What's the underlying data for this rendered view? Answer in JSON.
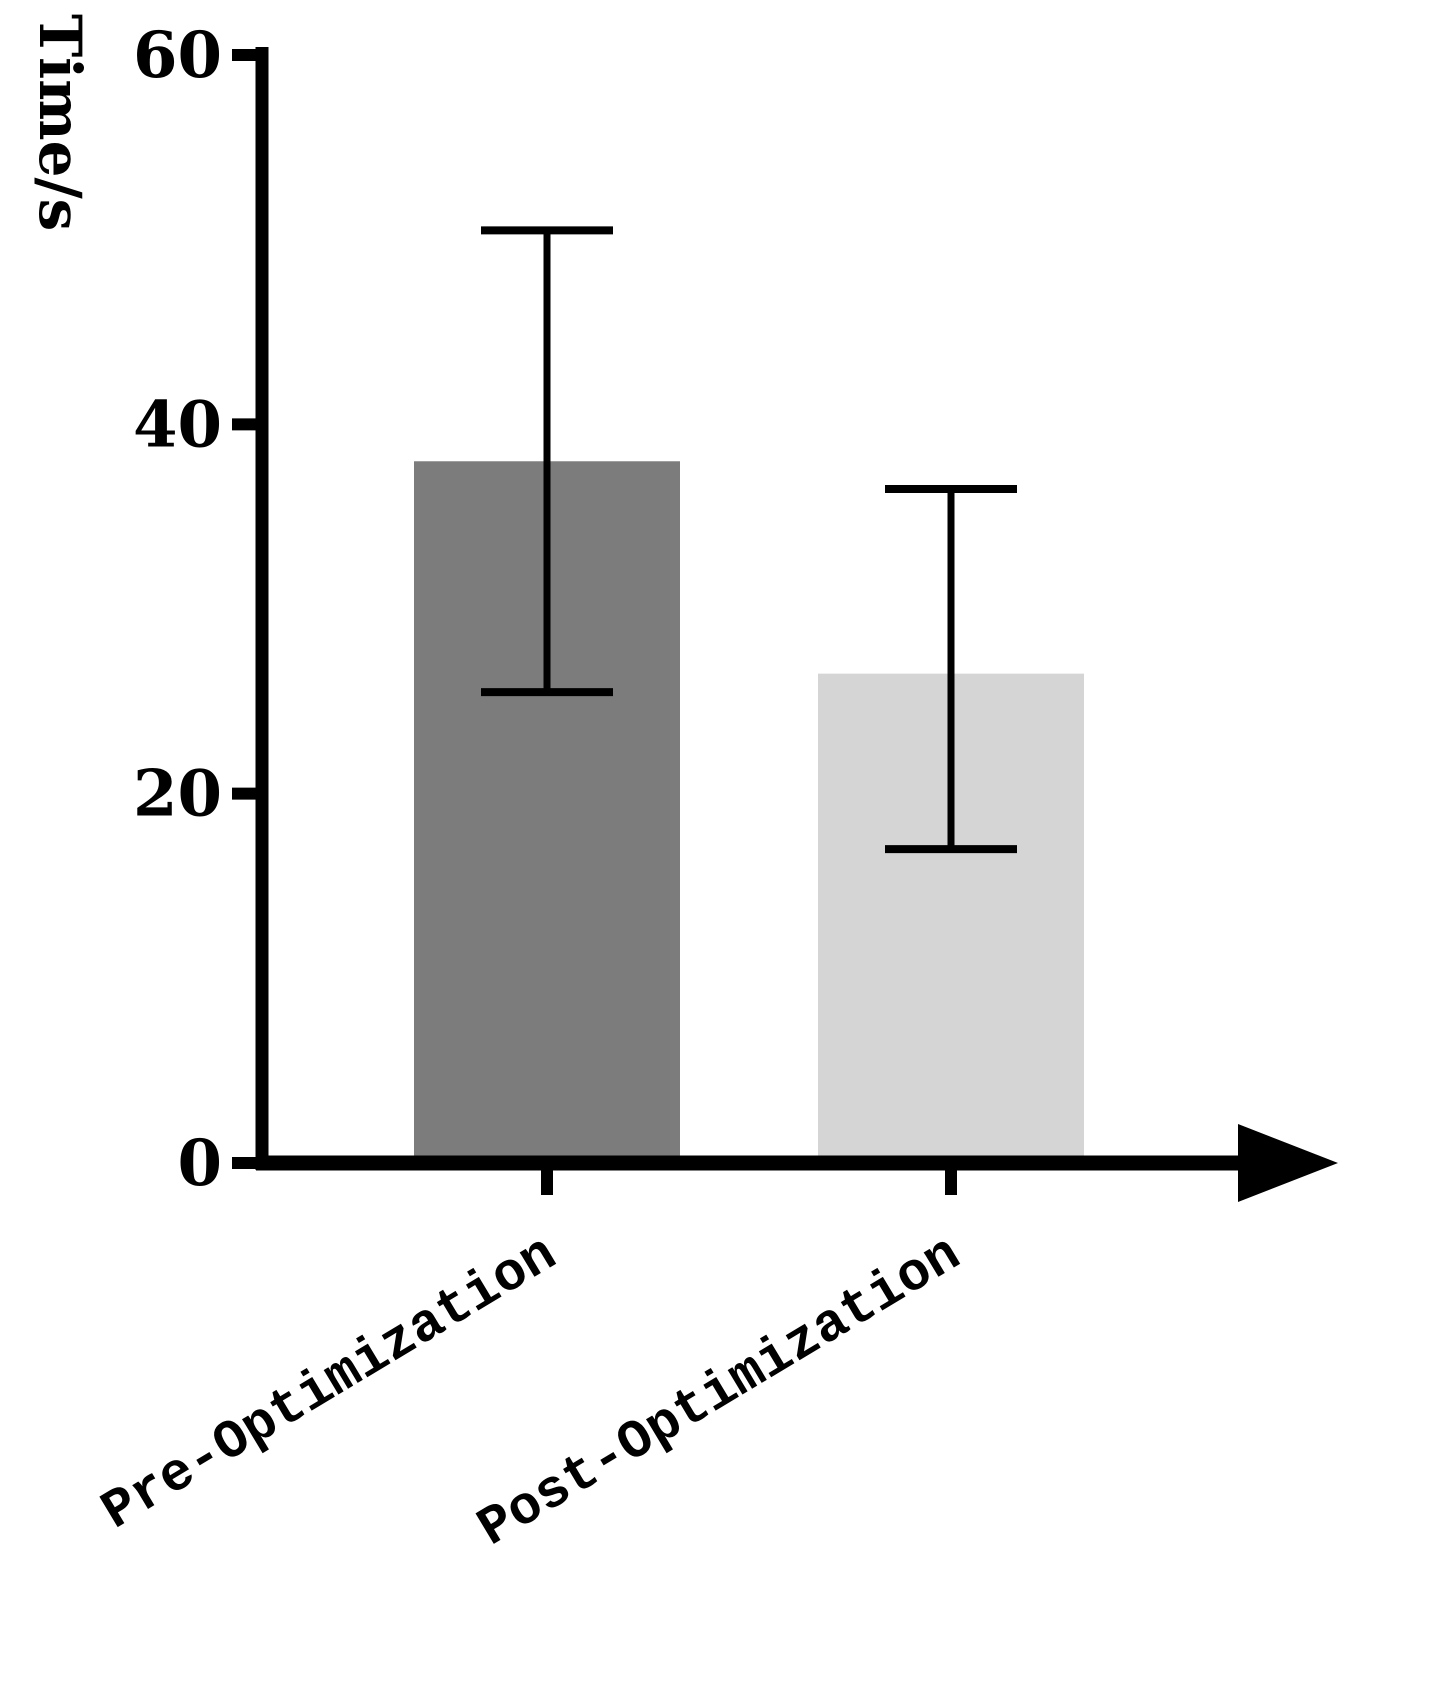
{
  "page": {
    "background_color": "#ffffff"
  },
  "chart_data": {
    "type": "bar",
    "title": "",
    "xlabel": "",
    "ylabel": "Time/s",
    "categories": [
      "Pre-Optimization",
      "Post-Optimization"
    ],
    "values": [
      38,
      26.5
    ],
    "error_bars": {
      "upper": [
        50.5,
        36.5
      ],
      "lower": [
        25.5,
        17
      ]
    },
    "ylim": [
      0,
      60
    ],
    "yticks": [
      0,
      20,
      40,
      60
    ],
    "bar_colors": [
      "#7c7c7c",
      "#d5d5d5"
    ],
    "axis_color": "#000000",
    "error_bar_color": "#000000",
    "grid": false,
    "legend_position": "none",
    "x_axis_arrow": true,
    "x_tick_label_rotation_deg": -31
  }
}
